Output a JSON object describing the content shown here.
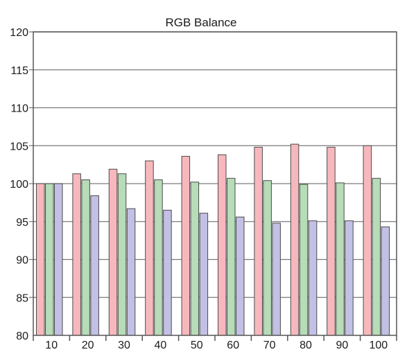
{
  "chart_data": {
    "type": "bar",
    "title": "RGB Balance",
    "xlabel": "",
    "ylabel": "",
    "categories": [
      "10",
      "20",
      "30",
      "40",
      "50",
      "60",
      "70",
      "80",
      "90",
      "100"
    ],
    "ylim": [
      80,
      120
    ],
    "yticks": [
      80,
      85,
      90,
      95,
      100,
      105,
      110,
      115,
      120
    ],
    "grid": true,
    "legend": "none",
    "series": [
      {
        "color": "#f7b8bd",
        "values": [
          100.0,
          101.3,
          101.9,
          103.0,
          103.6,
          103.8,
          104.8,
          105.2,
          104.8,
          105.0
        ]
      },
      {
        "color": "#b6dcb8",
        "values": [
          100.0,
          100.5,
          101.3,
          100.5,
          100.2,
          100.7,
          100.4,
          99.9,
          100.1,
          100.7
        ]
      },
      {
        "color": "#c2c0e4",
        "values": [
          100.0,
          98.4,
          96.7,
          96.5,
          96.1,
          95.6,
          94.8,
          95.1,
          95.1,
          94.3
        ]
      }
    ]
  }
}
